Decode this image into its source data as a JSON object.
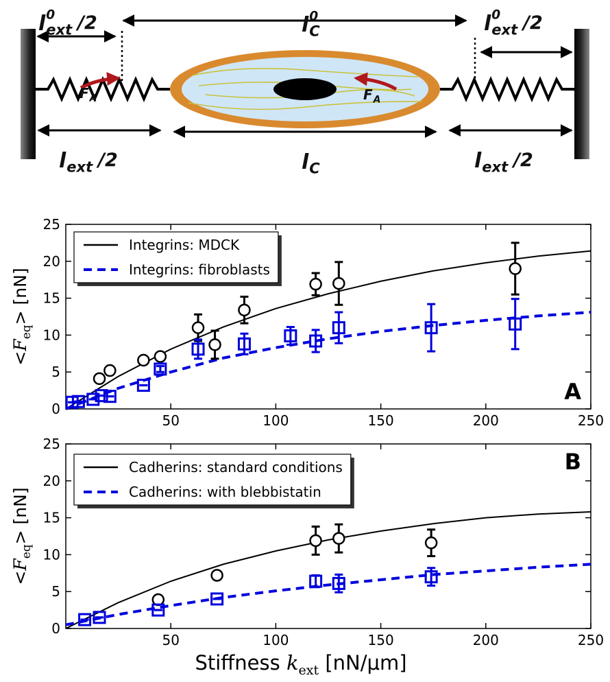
{
  "diagram": {
    "top_labels": [
      {
        "base": "l",
        "sup": "0",
        "sub": "ext",
        "tail": "/2"
      },
      {
        "base": "l",
        "sup": "0",
        "sub": "C"
      },
      {
        "base": "l",
        "sup": "0",
        "sub": "ext",
        "tail": "/2"
      }
    ],
    "bottom_labels": [
      {
        "base": "l",
        "sub": "ext",
        "tail": "/2"
      },
      {
        "base": "l",
        "sub": "C"
      },
      {
        "base": "l",
        "sub": "ext",
        "tail": "/2"
      }
    ],
    "forces": [
      {
        "base": "F",
        "sub": "A"
      },
      {
        "base": "F",
        "sub": "A"
      }
    ]
  },
  "chart_data": [
    {
      "type": "scatter",
      "panel_label": "A",
      "ylabel": {
        "pre": "<",
        "var": "F",
        "sub": "eq",
        "post": "> [nN]"
      },
      "xlim": [
        0,
        250
      ],
      "xticks": [
        50,
        100,
        150,
        200,
        250
      ],
      "ylim": [
        0,
        25
      ],
      "yticks": [
        0,
        5,
        10,
        15,
        20,
        25
      ],
      "legend": "upper left",
      "series": [
        {
          "name": "Integrins: MDCK",
          "color": "#000000",
          "dashed": false,
          "x": [
            0,
            25,
            50,
            75,
            100,
            125,
            150,
            175,
            200,
            225,
            250
          ],
          "values": [
            0,
            4.4,
            8.1,
            11.1,
            13.6,
            15.6,
            17.3,
            18.7,
            19.8,
            20.7,
            21.4
          ]
        },
        {
          "name": "Integrins: fibroblasts",
          "color": "#0000dd",
          "dashed": true,
          "x": [
            0,
            25,
            50,
            75,
            100,
            125,
            150,
            175,
            200,
            225,
            250
          ],
          "values": [
            0,
            2.8,
            5.0,
            6.9,
            8.3,
            9.5,
            10.5,
            11.3,
            12.0,
            12.6,
            13.1
          ]
        }
      ],
      "points": [
        {
          "color": "#000000",
          "marker": "circle",
          "x": [
            16,
            21,
            37,
            45,
            63,
            71,
            85,
            119,
            130,
            214
          ],
          "values": [
            4.1,
            5.2,
            6.6,
            7.1,
            11.0,
            8.7,
            13.4,
            16.9,
            17.0,
            19.0
          ],
          "errors": [
            0,
            0,
            0,
            0,
            1.8,
            1.9,
            1.8,
            1.5,
            2.9,
            3.5
          ]
        },
        {
          "color": "#0000dd",
          "marker": "square",
          "x": [
            3,
            6,
            13,
            17,
            21,
            37,
            45,
            63,
            85,
            107,
            119,
            130,
            174,
            214
          ],
          "values": [
            0.9,
            1.0,
            1.3,
            1.8,
            1.7,
            3.2,
            5.4,
            8.1,
            8.8,
            9.9,
            9.2,
            11.0,
            11.0,
            11.5
          ],
          "errors": [
            0,
            0,
            0,
            0,
            0,
            0,
            0.4,
            1.3,
            1.4,
            1.2,
            1.5,
            2.1,
            3.2,
            3.4
          ]
        }
      ]
    },
    {
      "type": "scatter",
      "panel_label": "B",
      "ylabel": {
        "pre": "<",
        "var": "F",
        "sub": "eq",
        "post": "> [nN]"
      },
      "xlabel": {
        "pre": "Stiffness ",
        "var": "k",
        "sub": "ext",
        "post": " [nN/μm]"
      },
      "xlim": [
        0,
        250
      ],
      "xticks": [
        50,
        100,
        150,
        200,
        250
      ],
      "ylim": [
        0,
        25
      ],
      "yticks": [
        0,
        5,
        10,
        15,
        20,
        25
      ],
      "legend": "upper left",
      "series": [
        {
          "name": "Cadherins: standard conditions",
          "color": "#000000",
          "dashed": false,
          "x": [
            0,
            25,
            50,
            75,
            100,
            125,
            150,
            175,
            200,
            225,
            250
          ],
          "values": [
            0,
            3.5,
            6.4,
            8.7,
            10.5,
            12.0,
            13.2,
            14.2,
            15.0,
            15.5,
            15.8
          ]
        },
        {
          "name": "Cadherins: with blebbistatin",
          "color": "#0000dd",
          "dashed": true,
          "x": [
            0,
            25,
            50,
            75,
            100,
            125,
            150,
            175,
            200,
            225,
            250
          ],
          "values": [
            0.5,
            1.9,
            3.1,
            4.2,
            5.1,
            5.9,
            6.6,
            7.3,
            7.8,
            8.3,
            8.7
          ]
        }
      ],
      "points": [
        {
          "color": "#000000",
          "marker": "circle",
          "x": [
            44,
            72,
            119,
            130,
            174
          ],
          "values": [
            3.9,
            7.2,
            11.9,
            12.2,
            11.6
          ],
          "errors": [
            0.3,
            0,
            1.9,
            1.9,
            1.8
          ]
        },
        {
          "color": "#0000dd",
          "marker": "square",
          "x": [
            9,
            16,
            44,
            72,
            119,
            130,
            174
          ],
          "values": [
            1.2,
            1.5,
            2.5,
            4.0,
            6.4,
            6.1,
            7.0
          ],
          "errors": [
            0,
            0,
            0,
            0,
            0.8,
            1.2,
            1.2
          ]
        }
      ]
    }
  ]
}
